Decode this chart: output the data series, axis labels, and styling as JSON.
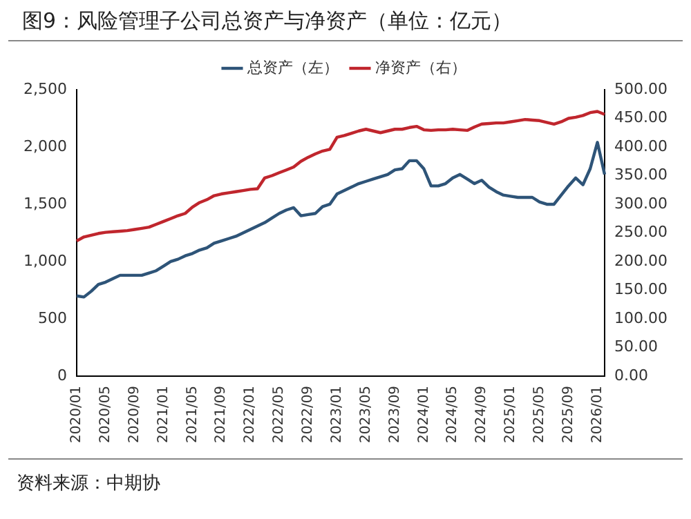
{
  "chart_data": {
    "type": "line",
    "title": "图9：风险管理子公司总资产与净资产（单位：亿元）",
    "categories": [
      "2020/01",
      null,
      null,
      null,
      "2020/05",
      null,
      null,
      null,
      "2020/09",
      null,
      null,
      null,
      "2021/01",
      null,
      null,
      null,
      "2021/05",
      null,
      null,
      null,
      "2021/09",
      null,
      null,
      null,
      "2022/01",
      null,
      null,
      null,
      "2022/05",
      null,
      null,
      null,
      "2022/09",
      null,
      null,
      null,
      "2023/01",
      null,
      null,
      null,
      "2023/05",
      null,
      null,
      null,
      "2023/09",
      null,
      null,
      null,
      "2024/01",
      null,
      null,
      null,
      "2024/05",
      null,
      null,
      null,
      "2024/09",
      null,
      null,
      null,
      "2025/01",
      null,
      null,
      null,
      "2025/05",
      null,
      null,
      null,
      "2025/09",
      null,
      null,
      null,
      "2026/01",
      null
    ],
    "series": [
      {
        "name": "总资产（左）",
        "color": "#2e5478",
        "axis": "y",
        "values": [
          700,
          690,
          740,
          800,
          820,
          850,
          880,
          880,
          880,
          880,
          900,
          920,
          960,
          1000,
          1020,
          1050,
          1070,
          1100,
          1120,
          1160,
          1180,
          1200,
          1220,
          1250,
          1280,
          1310,
          1340,
          1380,
          1420,
          1450,
          1470,
          1400,
          1410,
          1420,
          1480,
          1500,
          1590,
          1620,
          1650,
          1680,
          1700,
          1720,
          1740,
          1760,
          1800,
          1810,
          1880,
          1880,
          1810,
          1660,
          1660,
          1680,
          1730,
          1760,
          1720,
          1680,
          1710,
          1650,
          1610,
          1580,
          1570,
          1560,
          1560,
          1560,
          1520,
          1500,
          1500,
          1580,
          1660,
          1730,
          1670,
          1810,
          2040,
          1760
        ]
      },
      {
        "name": "净资产（右）",
        "color": "#c0262d",
        "axis": "y2",
        "values": [
          236,
          243,
          246,
          249,
          251,
          252,
          253,
          254,
          256,
          258,
          260,
          265,
          270,
          275,
          280,
          284,
          295,
          303,
          308,
          315,
          318,
          320,
          322,
          324,
          326,
          327,
          346,
          350,
          355,
          360,
          365,
          375,
          382,
          388,
          393,
          396,
          417,
          420,
          424,
          428,
          431,
          428,
          425,
          428,
          431,
          431,
          434,
          436,
          430,
          429,
          430,
          430,
          431,
          430,
          429,
          435,
          440,
          441,
          442,
          442,
          444,
          446,
          448,
          447,
          446,
          443,
          440,
          444,
          450,
          452,
          455,
          460,
          462,
          457
        ]
      }
    ],
    "ylim": [
      0,
      2500
    ],
    "yticks": [
      0,
      500,
      {
        "value": 1000,
        "label": "1,000"
      },
      {
        "value": 1500,
        "label": "1,500"
      },
      {
        "value": 2000,
        "label": "2,000"
      },
      {
        "value": 2500,
        "label": "2,500"
      }
    ],
    "y2lim": [
      0,
      500
    ],
    "y2ticks": [
      {
        "value": 0,
        "label": "0.00"
      },
      {
        "value": 50,
        "label": "50.00"
      },
      {
        "value": 100,
        "label": "100.00"
      },
      {
        "value": 150,
        "label": "150.00"
      },
      {
        "value": 200,
        "label": "200.00"
      },
      {
        "value": 250,
        "label": "250.00"
      },
      {
        "value": 300,
        "label": "300.00"
      },
      {
        "value": 350,
        "label": "350.00"
      },
      {
        "value": 400,
        "label": "400.00"
      },
      {
        "value": 450,
        "label": "450.00"
      },
      {
        "value": 500,
        "label": "500.00"
      }
    ],
    "legend": "top",
    "annotations": [
      "资料来源：中期协"
    ]
  }
}
